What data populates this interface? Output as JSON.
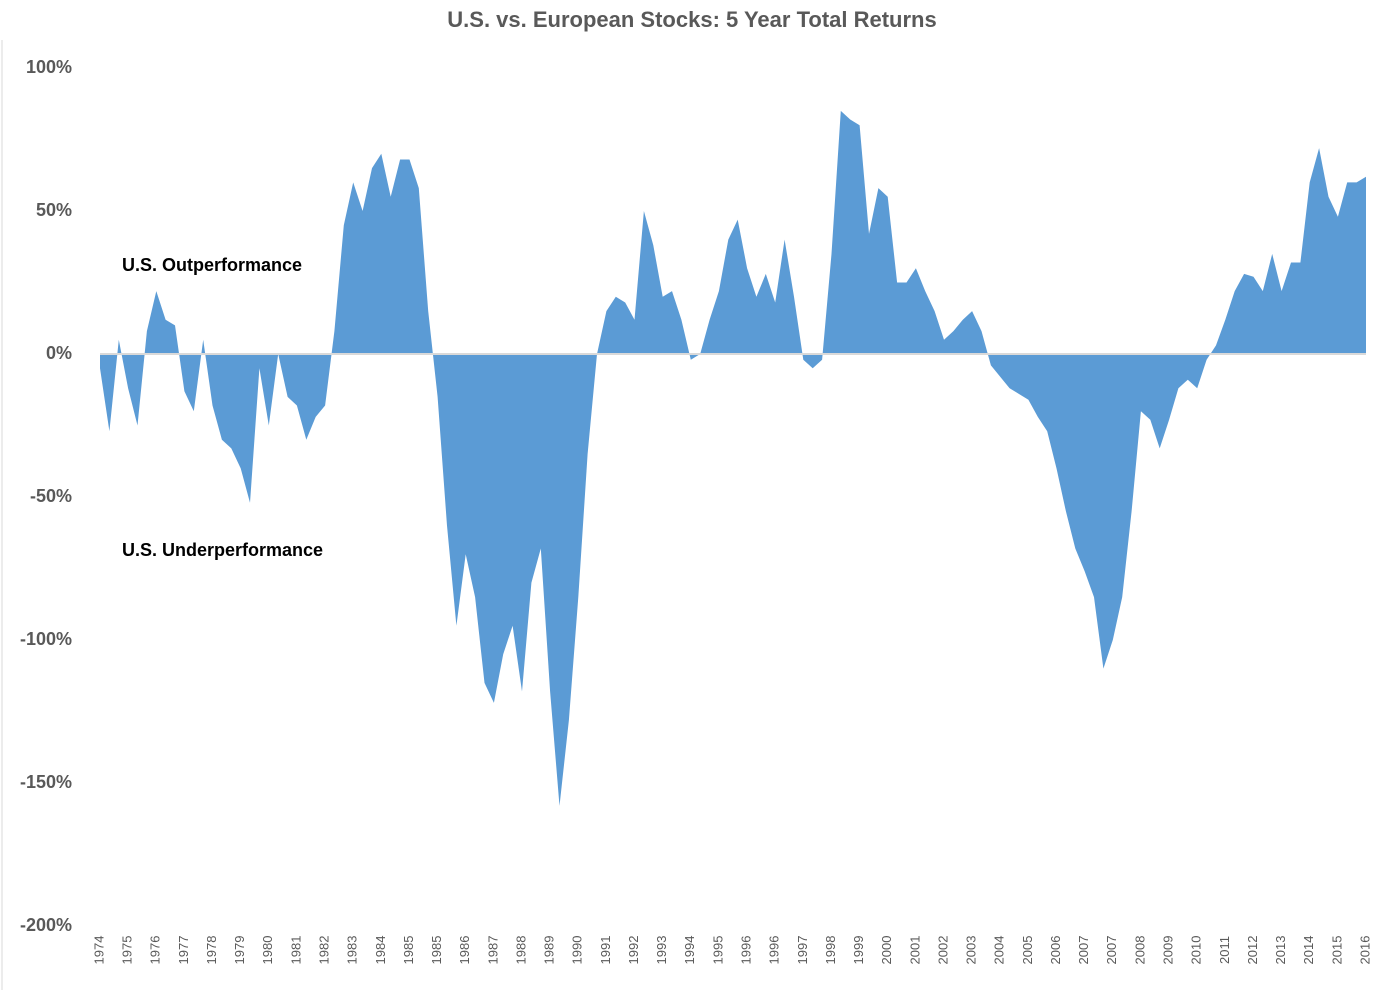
{
  "chart_data": {
    "type": "area",
    "title": "U.S. vs. European Stocks: 5 Year Total Returns",
    "annotations": [
      "U.S. Outperformance",
      "U.S. Underperformance"
    ],
    "color": "#5b9bd5",
    "categories": [
      "1974",
      null,
      null,
      "1975",
      null,
      null,
      "1976",
      null,
      null,
      "1977",
      null,
      null,
      "1978",
      null,
      null,
      "1979",
      null,
      null,
      "1980",
      null,
      null,
      "1981",
      null,
      null,
      "1982",
      null,
      null,
      "1983",
      null,
      null,
      "1984",
      null,
      null,
      "1985",
      null,
      null,
      "1985",
      null,
      null,
      "1986",
      null,
      null,
      "1987",
      null,
      null,
      "1988",
      null,
      null,
      "1989",
      null,
      null,
      "1990",
      null,
      null,
      "1991",
      null,
      null,
      "1992",
      null,
      null,
      "1993",
      null,
      null,
      "1994",
      null,
      null,
      "1995",
      null,
      null,
      "1996",
      null,
      null,
      "1996",
      null,
      null,
      "1997",
      null,
      null,
      "1998",
      null,
      null,
      "1999",
      null,
      null,
      "2000",
      null,
      null,
      "2001",
      null,
      null,
      "2002",
      null,
      null,
      "2003",
      null,
      null,
      "2004",
      null,
      null,
      "2005",
      null,
      null,
      "2006",
      null,
      null,
      "2007",
      null,
      null,
      "2007",
      null,
      null,
      "2008",
      null,
      null,
      "2009",
      null,
      null,
      "2010",
      null,
      null,
      "2011",
      null,
      null,
      "2012",
      null,
      null,
      "2013",
      null,
      null,
      "2014",
      null,
      null,
      "2015",
      null,
      null,
      "2016"
    ],
    "values": [
      -5,
      -27,
      5,
      -12,
      -25,
      8,
      22,
      12,
      10,
      -13,
      -20,
      5,
      -18,
      -30,
      -33,
      -40,
      -52,
      -5,
      -25,
      0,
      -15,
      -18,
      -30,
      -22,
      -18,
      8,
      45,
      60,
      50,
      65,
      70,
      55,
      68,
      68,
      58,
      15,
      -15,
      -60,
      -95,
      -70,
      -85,
      -115,
      -122,
      -105,
      -95,
      -118,
      -80,
      -68,
      -118,
      -158,
      -128,
      -85,
      -35,
      0,
      15,
      20,
      18,
      12,
      50,
      38,
      20,
      22,
      12,
      -2,
      0,
      12,
      22,
      40,
      47,
      30,
      20,
      28,
      18,
      40,
      20,
      -2,
      -5,
      -2,
      35,
      85,
      82,
      80,
      42,
      58,
      55,
      25,
      25,
      30,
      22,
      15,
      5,
      8,
      12,
      15,
      8,
      -4,
      -8,
      -12,
      -14,
      -16,
      -22,
      -27,
      -40,
      -55,
      -68,
      -76,
      -85,
      -110,
      -100,
      -85,
      -55,
      -20,
      -23,
      -33,
      -23,
      -12,
      -9,
      -12,
      -2,
      3,
      12,
      22,
      28,
      27,
      22,
      35,
      22,
      32,
      32,
      60,
      72,
      55,
      48,
      60,
      60,
      62
    ],
    "ylim": [
      -200,
      100
    ],
    "yticks": [
      {
        "value": -200,
        "label": "-200%"
      },
      {
        "value": -150,
        "label": "-150%"
      },
      {
        "value": -100,
        "label": "-100%"
      },
      {
        "value": -50,
        "label": "-50%"
      },
      {
        "value": 0,
        "label": "0%"
      },
      {
        "value": 50,
        "label": "50%"
      },
      {
        "value": 100,
        "label": "100%"
      }
    ]
  }
}
